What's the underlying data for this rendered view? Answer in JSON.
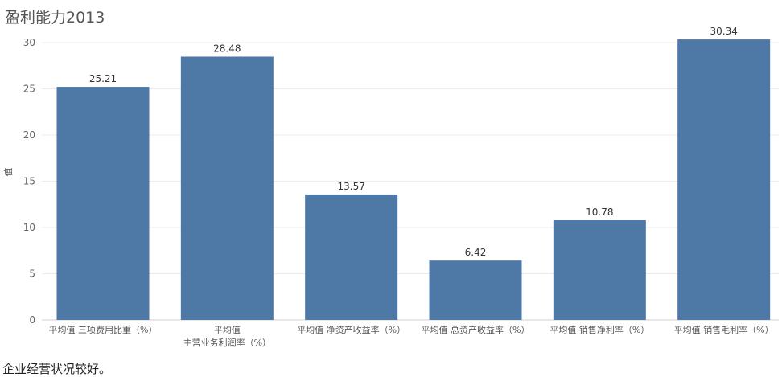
{
  "chart_data": {
    "type": "bar",
    "title": "盈利能力2013",
    "xlabel": "",
    "ylabel": "值",
    "ylim": [
      0,
      32
    ],
    "yticks": [
      0,
      5,
      10,
      15,
      20,
      25,
      30
    ],
    "grid": true,
    "legend": "none",
    "bar_color": "#4e79a7",
    "categories": [
      [
        "平均值 三项费用比重（%）"
      ],
      [
        "平均值",
        "主营业务利润率（%）"
      ],
      [
        "平均值 净资产收益率（%）"
      ],
      [
        "平均值 总资产收益率（%）"
      ],
      [
        "平均值 销售净利率（%）"
      ],
      [
        "平均值 销售毛利率（%）"
      ]
    ],
    "values": [
      25.21,
      28.48,
      13.57,
      6.42,
      10.78,
      30.34
    ],
    "value_labels": [
      "25.21",
      "28.48",
      "13.57",
      "6.42",
      "10.78",
      "30.34"
    ]
  },
  "caption": "企业经营状况较好。"
}
